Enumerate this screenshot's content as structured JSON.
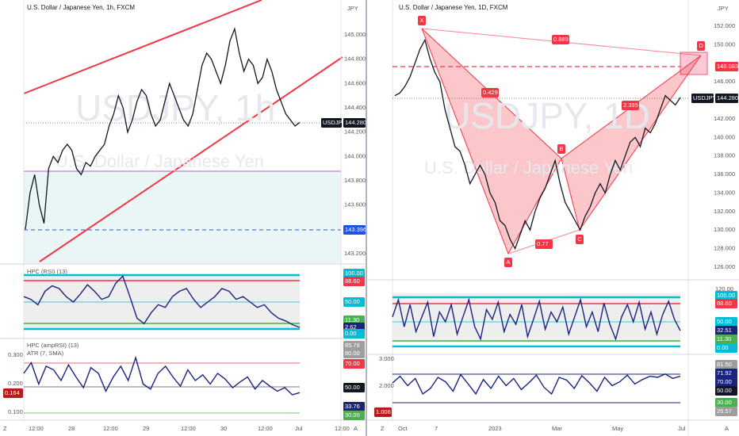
{
  "left": {
    "title": "U.S. Dollar / Japanese Yen, 1h, FXCM",
    "currency": "JPY",
    "watermark_symbol": "USDJPY, 1h",
    "watermark_name": "U.S. Dollar / Japanese Yen",
    "price_ticks": [
      "145.000",
      "144.800",
      "144.600",
      "144.400",
      "144.200",
      "144.000",
      "143.800",
      "143.600",
      "143.400",
      "143.200"
    ],
    "symbol": "USDJPY",
    "last_price": "144.280",
    "line_price": "143.396",
    "closes": [
      143.4,
      143.7,
      143.85,
      143.6,
      143.45,
      143.9,
      144.0,
      143.95,
      144.05,
      144.1,
      144.05,
      143.9,
      143.85,
      143.95,
      143.92,
      144.0,
      144.05,
      144.1,
      144.25,
      144.35,
      144.5,
      144.4,
      144.2,
      144.3,
      144.45,
      144.55,
      144.5,
      144.35,
      144.25,
      144.3,
      144.45,
      144.6,
      144.5,
      144.4,
      144.3,
      144.25,
      144.35,
      144.55,
      144.75,
      144.85,
      144.8,
      144.7,
      144.6,
      144.75,
      144.95,
      145.05,
      144.85,
      144.7,
      144.8,
      144.75,
      144.6,
      144.65,
      144.8,
      144.7,
      144.55,
      144.45,
      144.35,
      144.3,
      144.25,
      144.28
    ],
    "rsi": {
      "title": "HPC (RSI) (13)",
      "labels": [
        "100.00",
        "88.60",
        "50.00",
        "11.30",
        "2.62",
        "0.00"
      ],
      "values": [
        60,
        55,
        45,
        70,
        80,
        75,
        60,
        50,
        65,
        82,
        70,
        55,
        60,
        85,
        98,
        60,
        20,
        10,
        30,
        45,
        40,
        60,
        70,
        75,
        55,
        40,
        50,
        60,
        75,
        70,
        55,
        60,
        50,
        40,
        45,
        30,
        20,
        15,
        8,
        3
      ]
    },
    "lower": {
      "title": "HPC (ampRSI) (13)",
      "subtitle": "ATR (7, SMA)",
      "left_labels": [
        "0.300",
        "0.200",
        "0.100"
      ],
      "left_badge": "0.164",
      "right_labels": [
        "85.78",
        "80.00",
        "70.00",
        "50.00",
        "33.76",
        "30.00"
      ],
      "values": [
        60,
        75,
        45,
        70,
        65,
        50,
        72,
        55,
        40,
        68,
        60,
        35,
        55,
        70,
        50,
        82,
        45,
        38,
        60,
        70,
        55,
        42,
        65,
        50,
        58,
        45,
        60,
        52,
        40,
        48,
        55,
        38,
        50,
        42,
        35,
        40,
        30,
        33
      ]
    },
    "time_axis": [
      "Z",
      "12:00",
      "28",
      "12:00",
      "29",
      "12:00",
      "30",
      "12:00",
      "Jul",
      "12:00",
      "A"
    ]
  },
  "right": {
    "title": "U.S. Dollar / Japanese Yen, 1D, FXCM",
    "currency": "JPY",
    "watermark_symbol": "USDJPY, 1D",
    "watermark_name": "U.S. Dollar / Japanese Yen",
    "price_ticks": [
      "152.000",
      "150.000",
      "148.000",
      "146.000",
      "144.000",
      "142.000",
      "140.000",
      "138.000",
      "136.000",
      "134.000",
      "132.000",
      "130.000",
      "128.000",
      "126.000"
    ],
    "symbol": "USDJPY",
    "last_price": "144.280",
    "line_price": "148.083",
    "pattern": {
      "points": [
        "X",
        "A",
        "B",
        "C",
        "D"
      ],
      "ratios": [
        "0.889",
        "0.429",
        "2.395",
        "0.77"
      ]
    },
    "closes": [
      144.5,
      144.8,
      145.5,
      146.5,
      148,
      149.5,
      150.5,
      148.5,
      147,
      146,
      143,
      141,
      139,
      138.5,
      137,
      135,
      136,
      137,
      136,
      134,
      133,
      131,
      130.5,
      129,
      128,
      129.5,
      131,
      130,
      132,
      133.5,
      134.5,
      136,
      137.5,
      135,
      133,
      132,
      131,
      130,
      131.5,
      132.5,
      134,
      135,
      134,
      136,
      137.5,
      136.5,
      138,
      139.5,
      140,
      139,
      141,
      140.5,
      141.5,
      143,
      144.5,
      144,
      143.5,
      144.3
    ],
    "rsi": {
      "labels": [
        "120.00",
        "100.00",
        "88.60",
        "50.00",
        "32.51",
        "11.30",
        "0.00"
      ],
      "values": [
        60,
        95,
        40,
        85,
        30,
        60,
        90,
        20,
        70,
        50,
        85,
        25,
        60,
        95,
        40,
        15,
        75,
        55,
        90,
        30,
        65,
        45,
        85,
        20,
        55,
        92,
        35,
        70,
        50,
        80,
        25,
        60,
        95,
        40,
        70,
        30,
        88,
        45,
        15,
        60,
        85,
        50,
        90,
        35,
        70,
        25,
        65,
        92,
        55,
        32
      ]
    },
    "lower": {
      "left_labels": [
        "3.000",
        "2.000",
        "1.006"
      ],
      "right_labels": [
        "81.50",
        "71.92",
        "70.00",
        "50.00",
        "30.00",
        "26.57"
      ],
      "values": [
        60,
        72,
        55,
        68,
        40,
        50,
        70,
        62,
        45,
        75,
        58,
        40,
        66,
        50,
        72,
        55,
        68,
        48,
        60,
        74,
        52,
        40,
        70,
        65,
        50,
        73,
        60,
        45,
        70,
        55,
        62,
        74,
        58,
        66,
        72,
        70,
        76,
        68,
        72
      ]
    },
    "time_axis": [
      "Z",
      "Oct",
      "7",
      "2023",
      "Mar",
      "May",
      "Jul",
      "A"
    ]
  }
}
